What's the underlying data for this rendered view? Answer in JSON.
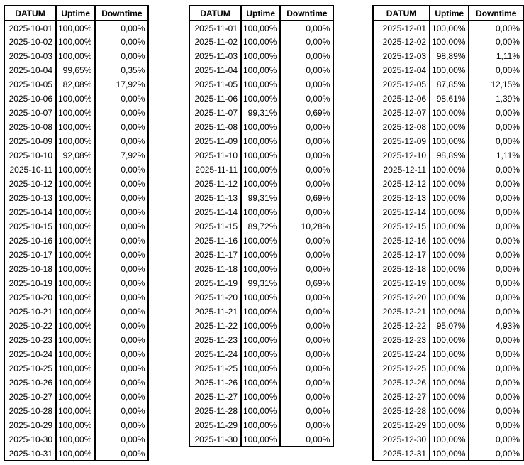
{
  "colors": {
    "border": "#000000",
    "text": "#000000",
    "background": "#ffffff"
  },
  "report": {
    "tables": [
      {
        "id": "october",
        "headers": [
          "DATUM",
          "Uptime",
          "Downtime"
        ],
        "rows": [
          [
            "2025-10-01",
            "100,00%",
            "0,00%"
          ],
          [
            "2025-10-02",
            "100,00%",
            "0,00%"
          ],
          [
            "2025-10-03",
            "100,00%",
            "0,00%"
          ],
          [
            "2025-10-04",
            "99,65%",
            "0,35%"
          ],
          [
            "2025-10-05",
            "82,08%",
            "17,92%"
          ],
          [
            "2025-10-06",
            "100,00%",
            "0,00%"
          ],
          [
            "2025-10-07",
            "100,00%",
            "0,00%"
          ],
          [
            "2025-10-08",
            "100,00%",
            "0,00%"
          ],
          [
            "2025-10-09",
            "100,00%",
            "0,00%"
          ],
          [
            "2025-10-10",
            "92,08%",
            "7,92%"
          ],
          [
            "2025-10-11",
            "100,00%",
            "0,00%"
          ],
          [
            "2025-10-12",
            "100,00%",
            "0,00%"
          ],
          [
            "2025-10-13",
            "100,00%",
            "0,00%"
          ],
          [
            "2025-10-14",
            "100,00%",
            "0,00%"
          ],
          [
            "2025-10-15",
            "100,00%",
            "0,00%"
          ],
          [
            "2025-10-16",
            "100,00%",
            "0,00%"
          ],
          [
            "2025-10-17",
            "100,00%",
            "0,00%"
          ],
          [
            "2025-10-18",
            "100,00%",
            "0,00%"
          ],
          [
            "2025-10-19",
            "100,00%",
            "0,00%"
          ],
          [
            "2025-10-20",
            "100,00%",
            "0,00%"
          ],
          [
            "2025-10-21",
            "100,00%",
            "0,00%"
          ],
          [
            "2025-10-22",
            "100,00%",
            "0,00%"
          ],
          [
            "2025-10-23",
            "100,00%",
            "0,00%"
          ],
          [
            "2025-10-24",
            "100,00%",
            "0,00%"
          ],
          [
            "2025-10-25",
            "100,00%",
            "0,00%"
          ],
          [
            "2025-10-26",
            "100,00%",
            "0,00%"
          ],
          [
            "2025-10-27",
            "100,00%",
            "0,00%"
          ],
          [
            "2025-10-28",
            "100,00%",
            "0,00%"
          ],
          [
            "2025-10-29",
            "100,00%",
            "0,00%"
          ],
          [
            "2025-10-30",
            "100,00%",
            "0,00%"
          ],
          [
            "2025-10-31",
            "100,00%",
            "0,00%"
          ]
        ]
      },
      {
        "id": "november",
        "headers": [
          "DATUM",
          "Uptime",
          "Downtime"
        ],
        "rows": [
          [
            "2025-11-01",
            "100,00%",
            "0,00%"
          ],
          [
            "2025-11-02",
            "100,00%",
            "0,00%"
          ],
          [
            "2025-11-03",
            "100,00%",
            "0,00%"
          ],
          [
            "2025-11-04",
            "100,00%",
            "0,00%"
          ],
          [
            "2025-11-05",
            "100,00%",
            "0,00%"
          ],
          [
            "2025-11-06",
            "100,00%",
            "0,00%"
          ],
          [
            "2025-11-07",
            "99,31%",
            "0,69%"
          ],
          [
            "2025-11-08",
            "100,00%",
            "0,00%"
          ],
          [
            "2025-11-09",
            "100,00%",
            "0,00%"
          ],
          [
            "2025-11-10",
            "100,00%",
            "0,00%"
          ],
          [
            "2025-11-11",
            "100,00%",
            "0,00%"
          ],
          [
            "2025-11-12",
            "100,00%",
            "0,00%"
          ],
          [
            "2025-11-13",
            "99,31%",
            "0,69%"
          ],
          [
            "2025-11-14",
            "100,00%",
            "0,00%"
          ],
          [
            "2025-11-15",
            "89,72%",
            "10,28%"
          ],
          [
            "2025-11-16",
            "100,00%",
            "0,00%"
          ],
          [
            "2025-11-17",
            "100,00%",
            "0,00%"
          ],
          [
            "2025-11-18",
            "100,00%",
            "0,00%"
          ],
          [
            "2025-11-19",
            "99,31%",
            "0,69%"
          ],
          [
            "2025-11-20",
            "100,00%",
            "0,00%"
          ],
          [
            "2025-11-21",
            "100,00%",
            "0,00%"
          ],
          [
            "2025-11-22",
            "100,00%",
            "0,00%"
          ],
          [
            "2025-11-23",
            "100,00%",
            "0,00%"
          ],
          [
            "2025-11-24",
            "100,00%",
            "0,00%"
          ],
          [
            "2025-11-25",
            "100,00%",
            "0,00%"
          ],
          [
            "2025-11-26",
            "100,00%",
            "0,00%"
          ],
          [
            "2025-11-27",
            "100,00%",
            "0,00%"
          ],
          [
            "2025-11-28",
            "100,00%",
            "0,00%"
          ],
          [
            "2025-11-29",
            "100,00%",
            "0,00%"
          ],
          [
            "2025-11-30",
            "100,00%",
            "0,00%"
          ]
        ]
      },
      {
        "id": "december",
        "headers": [
          "DATUM",
          "Uptime",
          "Downtime"
        ],
        "rows": [
          [
            "2025-12-01",
            "100,00%",
            "0,00%"
          ],
          [
            "2025-12-02",
            "100,00%",
            "0,00%"
          ],
          [
            "2025-12-03",
            "98,89%",
            "1,11%"
          ],
          [
            "2025-12-04",
            "100,00%",
            "0,00%"
          ],
          [
            "2025-12-05",
            "87,85%",
            "12,15%"
          ],
          [
            "2025-12-06",
            "98,61%",
            "1,39%"
          ],
          [
            "2025-12-07",
            "100,00%",
            "0,00%"
          ],
          [
            "2025-12-08",
            "100,00%",
            "0,00%"
          ],
          [
            "2025-12-09",
            "100,00%",
            "0,00%"
          ],
          [
            "2025-12-10",
            "98,89%",
            "1,11%"
          ],
          [
            "2025-12-11",
            "100,00%",
            "0,00%"
          ],
          [
            "2025-12-12",
            "100,00%",
            "0,00%"
          ],
          [
            "2025-12-13",
            "100,00%",
            "0,00%"
          ],
          [
            "2025-12-14",
            "100,00%",
            "0,00%"
          ],
          [
            "2025-12-15",
            "100,00%",
            "0,00%"
          ],
          [
            "2025-12-16",
            "100,00%",
            "0,00%"
          ],
          [
            "2025-12-17",
            "100,00%",
            "0,00%"
          ],
          [
            "2025-12-18",
            "100,00%",
            "0,00%"
          ],
          [
            "2025-12-19",
            "100,00%",
            "0,00%"
          ],
          [
            "2025-12-20",
            "100,00%",
            "0,00%"
          ],
          [
            "2025-12-21",
            "100,00%",
            "0,00%"
          ],
          [
            "2025-12-22",
            "95,07%",
            "4,93%"
          ],
          [
            "2025-12-23",
            "100,00%",
            "0,00%"
          ],
          [
            "2025-12-24",
            "100,00%",
            "0,00%"
          ],
          [
            "2025-12-25",
            "100,00%",
            "0,00%"
          ],
          [
            "2025-12-26",
            "100,00%",
            "0,00%"
          ],
          [
            "2025-12-27",
            "100,00%",
            "0,00%"
          ],
          [
            "2025-12-28",
            "100,00%",
            "0,00%"
          ],
          [
            "2025-12-29",
            "100,00%",
            "0,00%"
          ],
          [
            "2025-12-30",
            "100,00%",
            "0,00%"
          ],
          [
            "2025-12-31",
            "100,00%",
            "0,00%"
          ]
        ]
      }
    ]
  }
}
